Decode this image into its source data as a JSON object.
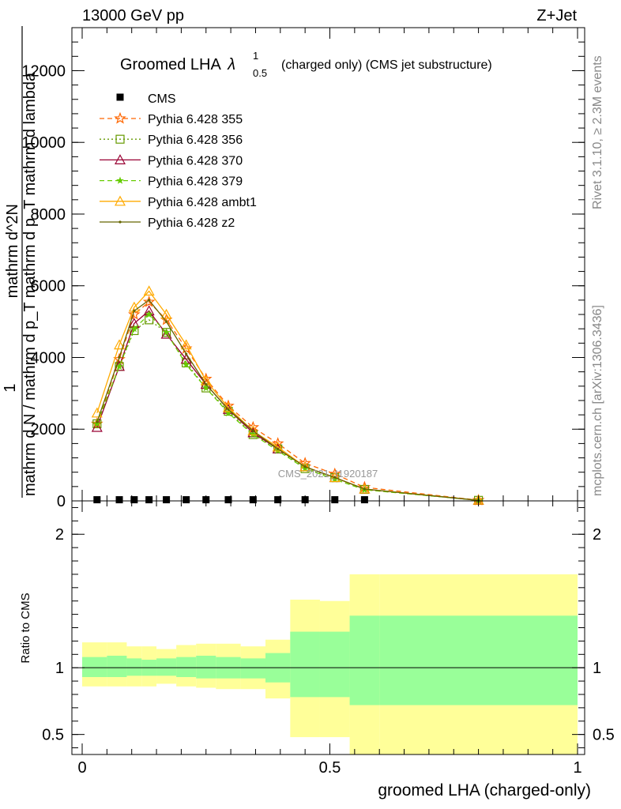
{
  "header": {
    "energy": "13000 GeV pp",
    "process": "Z+Jet"
  },
  "side_labels": {
    "rivet": "Rivet 3.1.10, ≥ 2.3M events",
    "mcplots": "mcplots.cern.ch [arXiv:1306.3436]"
  },
  "watermark": "CMS_2021_I1920187",
  "chart_data": [
    {
      "type": "line",
      "title_main": "Groomed LHA",
      "title_lambda": "λ",
      "title_sup": "1",
      "title_sub": "0.5",
      "title_rest": "(charged only) (CMS jet substructure)",
      "ylabel_top": "1",
      "ylabel_num": "mathrm d^2N",
      "ylabel_den": "mathrm d N / mathrm d p_T mathrm d p_T mathrm d lambda",
      "ylim": [
        0,
        13200
      ],
      "yticks": [
        {
          "v": 0,
          "label": "0"
        },
        {
          "v": 2000,
          "label": "2000"
        },
        {
          "v": 4000,
          "label": "4000"
        },
        {
          "v": 6000,
          "label": "6000"
        },
        {
          "v": 8000,
          "label": "8000"
        },
        {
          "v": 10000,
          "label": "10000"
        },
        {
          "v": 12000,
          "label": "12000"
        }
      ],
      "x": [
        0.03,
        0.075,
        0.105,
        0.135,
        0.17,
        0.21,
        0.25,
        0.295,
        0.345,
        0.395,
        0.45,
        0.51,
        0.57,
        0.8
      ],
      "cms": [
        10,
        10,
        10,
        10,
        10,
        10,
        10,
        10,
        10,
        10,
        10,
        10,
        10
      ],
      "cms_x": [
        0.03,
        0.075,
        0.105,
        0.135,
        0.17,
        0.21,
        0.25,
        0.295,
        0.345,
        0.395,
        0.45,
        0.51,
        0.57
      ],
      "legend": {
        "cms": "CMS"
      },
      "series": [
        {
          "name": "Pythia 6.428 355",
          "color": "#ff6600",
          "dash": "6,4",
          "marker": "star",
          "values": [
            2150,
            3950,
            5200,
            5550,
            5050,
            4250,
            3400,
            2650,
            2050,
            1600,
            1050,
            750,
            380,
            20
          ]
        },
        {
          "name": "Pythia 6.428 356",
          "color": "#669900",
          "dash": "2,3",
          "marker": "square",
          "values": [
            2150,
            3750,
            4750,
            5050,
            4700,
            3850,
            3150,
            2500,
            1850,
            1450,
            900,
            650,
            320,
            15
          ]
        },
        {
          "name": "Pythia 6.428 370",
          "color": "#990033",
          "dash": "",
          "marker": "triangle",
          "values": [
            2050,
            3750,
            4950,
            5300,
            4650,
            3950,
            3250,
            2550,
            1900,
            1450,
            950,
            650,
            330,
            15
          ]
        },
        {
          "name": "Pythia 6.428 379",
          "color": "#66cc00",
          "dash": "6,4",
          "marker": "smallstar",
          "values": [
            2150,
            3750,
            4800,
            5200,
            4700,
            3800,
            3150,
            2450,
            1850,
            1400,
            900,
            600,
            310,
            15
          ]
        },
        {
          "name": "Pythia 6.428 ambt1",
          "color": "#ffaa00",
          "dash": "",
          "marker": "triangle",
          "values": [
            2450,
            4350,
            5400,
            5850,
            5200,
            4350,
            3350,
            2600,
            1950,
            1500,
            950,
            650,
            330,
            20
          ]
        },
        {
          "name": "Pythia 6.428 z2",
          "color": "#666600",
          "dash": "",
          "marker": "dot",
          "values": [
            2200,
            4000,
            5300,
            5600,
            5000,
            4100,
            3250,
            2550,
            1950,
            1450,
            950,
            650,
            330,
            15
          ]
        }
      ]
    },
    {
      "type": "area",
      "ylabel": "Ratio to CMS",
      "xlabel": "groomed LHA (charged-only)",
      "ylim": [
        0.35,
        2.25
      ],
      "xlim": [
        -0.02,
        1.0
      ],
      "yticks": [
        {
          "v": 0.5,
          "label": "0.5"
        },
        {
          "v": 1,
          "label": "1"
        },
        {
          "v": 2,
          "label": "2"
        }
      ],
      "xticks": [
        {
          "v": 0,
          "label": "0"
        },
        {
          "v": 0.5,
          "label": "0.5"
        },
        {
          "v": 1,
          "label": "1"
        }
      ],
      "bin_edges": [
        0.0,
        0.05,
        0.09,
        0.12,
        0.15,
        0.19,
        0.23,
        0.27,
        0.32,
        0.37,
        0.42,
        0.48,
        0.54,
        0.6,
        1.0
      ],
      "stat_band": [
        [
          0.93,
          1.08
        ],
        [
          0.93,
          1.09
        ],
        [
          0.94,
          1.07
        ],
        [
          0.94,
          1.06
        ],
        [
          0.94,
          1.07
        ],
        [
          0.93,
          1.08
        ],
        [
          0.92,
          1.09
        ],
        [
          0.92,
          1.08
        ],
        [
          0.92,
          1.07
        ],
        [
          0.89,
          1.11
        ],
        [
          0.78,
          1.27
        ],
        [
          0.78,
          1.27
        ],
        [
          0.72,
          1.39
        ],
        [
          0.72,
          1.39
        ]
      ],
      "syst_band": [
        [
          0.86,
          1.19
        ],
        [
          0.86,
          1.19
        ],
        [
          0.86,
          1.16
        ],
        [
          0.86,
          1.16
        ],
        [
          0.88,
          1.14
        ],
        [
          0.86,
          1.17
        ],
        [
          0.85,
          1.18
        ],
        [
          0.84,
          1.18
        ],
        [
          0.84,
          1.16
        ],
        [
          0.77,
          1.21
        ],
        [
          0.48,
          1.51
        ],
        [
          0.48,
          1.5
        ],
        [
          0.35,
          1.7
        ],
        [
          0.35,
          1.7
        ]
      ],
      "colors": {
        "stat": "#99ff99",
        "syst": "#ffff99"
      }
    }
  ]
}
